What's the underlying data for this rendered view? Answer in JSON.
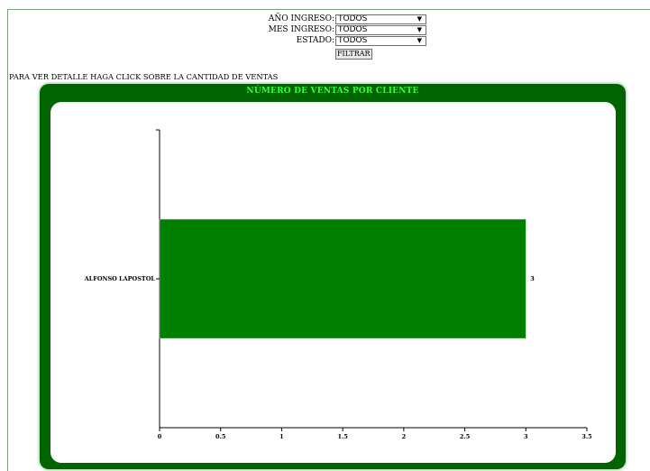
{
  "filters": [
    {
      "label": "AÑO INGRESO:",
      "value": "TODOS"
    },
    {
      "label": "MES INGRESO:",
      "value": "TODOS"
    },
    {
      "label": "ESTADO:",
      "value": "TODOS"
    }
  ],
  "filter_button": "FILTRAR",
  "hint": "PARA VER DETALLE HAGA CLICK SOBRE LA CANTIDAD DE VENTAS",
  "panel_title": "NÚMERO DE VENTAS POR CLIENTE",
  "colors": {
    "panel": "#006400",
    "title": "#33ff33",
    "bar": "#008000"
  },
  "chart_data": {
    "type": "bar",
    "orientation": "horizontal",
    "title": "NÚMERO DE VENTAS POR CLIENTE",
    "categories": [
      "ALFONSO LAPOSTOL"
    ],
    "values": [
      3
    ],
    "data_labels": [
      "3"
    ],
    "xlim": [
      0,
      3.5
    ],
    "xticks": [
      "0",
      "0.5",
      "1",
      "1.5",
      "2",
      "2.5",
      "3",
      "3.5"
    ],
    "grid": false
  }
}
